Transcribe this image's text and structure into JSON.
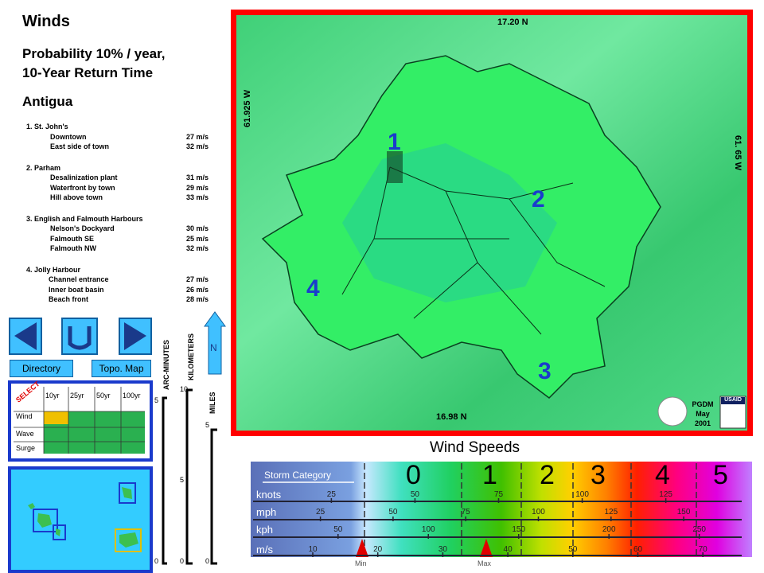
{
  "header": {
    "title": "Winds",
    "subtitle": [
      "Probability 10% / year,",
      "10-Year Return Time"
    ],
    "region": "Antigua"
  },
  "locations": [
    {
      "name": "1. St. John's",
      "sites": [
        {
          "name": "Downtown",
          "value": "27 m/s"
        },
        {
          "name": "East side of town",
          "value": "32 m/s"
        }
      ]
    },
    {
      "name": "2. Parham",
      "sites": [
        {
          "name": "Desalinization plant",
          "value": "31 m/s"
        },
        {
          "name": "Waterfront by town",
          "value": "29 m/s"
        },
        {
          "name": "Hill above town",
          "value": "33 m/s"
        }
      ]
    },
    {
      "name": "3. English and Falmouth Harbours",
      "sites": [
        {
          "name": "Nelson's Dockyard",
          "value": "30 m/s"
        },
        {
          "name": "Falmouth SE",
          "value": "25 m/s"
        },
        {
          "name": "Falmouth NW",
          "value": "32 m/s"
        }
      ]
    },
    {
      "name": "4. Jolly Harbour",
      "sites": [
        {
          "name": "Channel entrance",
          "value": "27 m/s"
        },
        {
          "name": "Inner boat basin",
          "value": "26 m/s"
        },
        {
          "name": "Beach front",
          "value": "28 m/s"
        }
      ]
    }
  ],
  "nav": {
    "directory": "Directory",
    "topo": "Topo. Map",
    "north": "N"
  },
  "select": {
    "label": "SELECT",
    "columns": [
      "10yr",
      "25yr",
      "50yr",
      "100yr"
    ],
    "rows": [
      "Wind",
      "Wave",
      "Surge"
    ]
  },
  "scales": {
    "arc": {
      "label": "ARC-MINUTES",
      "ticks": [
        5,
        0
      ]
    },
    "km": {
      "label": "KILOMETERS",
      "ticks": [
        10,
        5,
        0
      ]
    },
    "miles": {
      "label": "MILES",
      "ticks": [
        5,
        0
      ]
    }
  },
  "map": {
    "north": "17.20 N",
    "south": "16.98 N",
    "west": "61.925 W",
    "east": "61. 65 W",
    "markers": [
      "1",
      "2",
      "3",
      "4"
    ],
    "credit": [
      "PGDM",
      "May",
      "2001"
    ],
    "usaid": "USAID"
  },
  "legend": {
    "title": "Wind Speeds",
    "storm_label": "Storm Category",
    "categories": [
      "0",
      "1",
      "2",
      "3",
      "4",
      "5"
    ],
    "units": [
      {
        "name": "knots",
        "ticks": [
          25,
          50,
          75,
          100,
          125
        ]
      },
      {
        "name": "mph",
        "ticks": [
          25,
          50,
          75,
          100,
          125,
          150
        ]
      },
      {
        "name": "kph",
        "ticks": [
          50,
          100,
          150,
          200,
          250
        ]
      },
      {
        "name": "m/s",
        "ticks": [
          10,
          20,
          30,
          40,
          50,
          60,
          70
        ]
      }
    ],
    "min": "Min",
    "max": "Max"
  }
}
